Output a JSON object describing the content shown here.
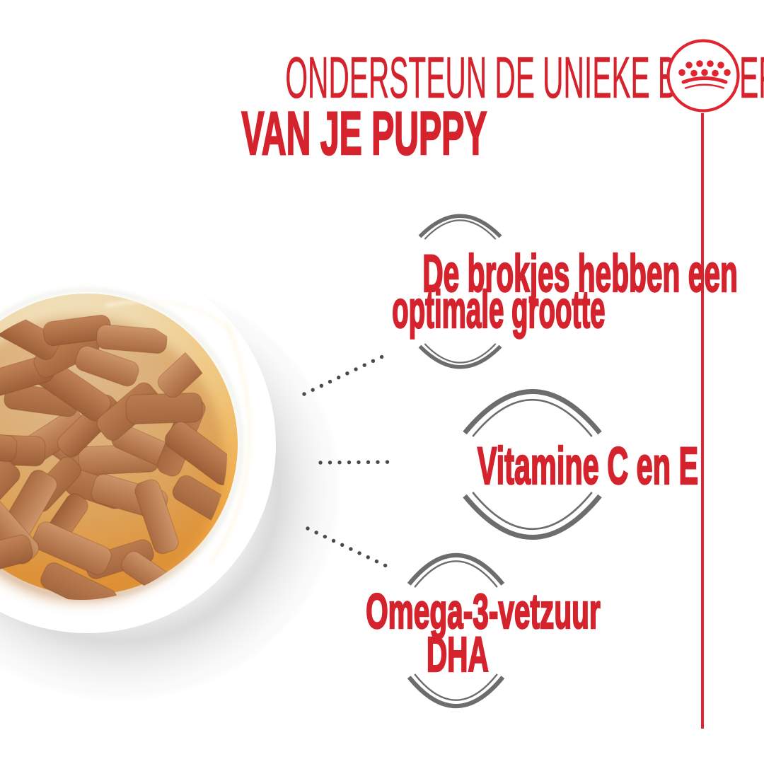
{
  "page": {
    "background_color": "#ffffff",
    "description": "Royal Canin puppy wet-food benefits infographic"
  },
  "header": {
    "line1": "ONDERSTEUN DE UNIEKE BEHOEFTEN",
    "line2": "VAN JE PUPPY",
    "text_color": "#d5232d"
  },
  "brand": {
    "logo_icon": "royal-canin-crown-icon",
    "logo_color": "#e02530"
  },
  "illustration": {
    "description": "White bowl filled with wet puppy food chunks in amber gravy",
    "plate_color": "#ffffff",
    "gravy_color": "#f0a83d",
    "chunk_color": "#b5764a"
  },
  "callouts": [
    {
      "lines": [
        "De brokjes hebben een",
        "optimale grootte"
      ]
    },
    {
      "lines": [
        "Vitamine C en E"
      ]
    },
    {
      "lines": [
        "Omega-3-vetzuur",
        "DHA"
      ]
    }
  ],
  "decor": {
    "chevron_color": "#6d6d6d",
    "dot_color": "#4a4a4a",
    "vertical_line_color": "#e02530"
  }
}
